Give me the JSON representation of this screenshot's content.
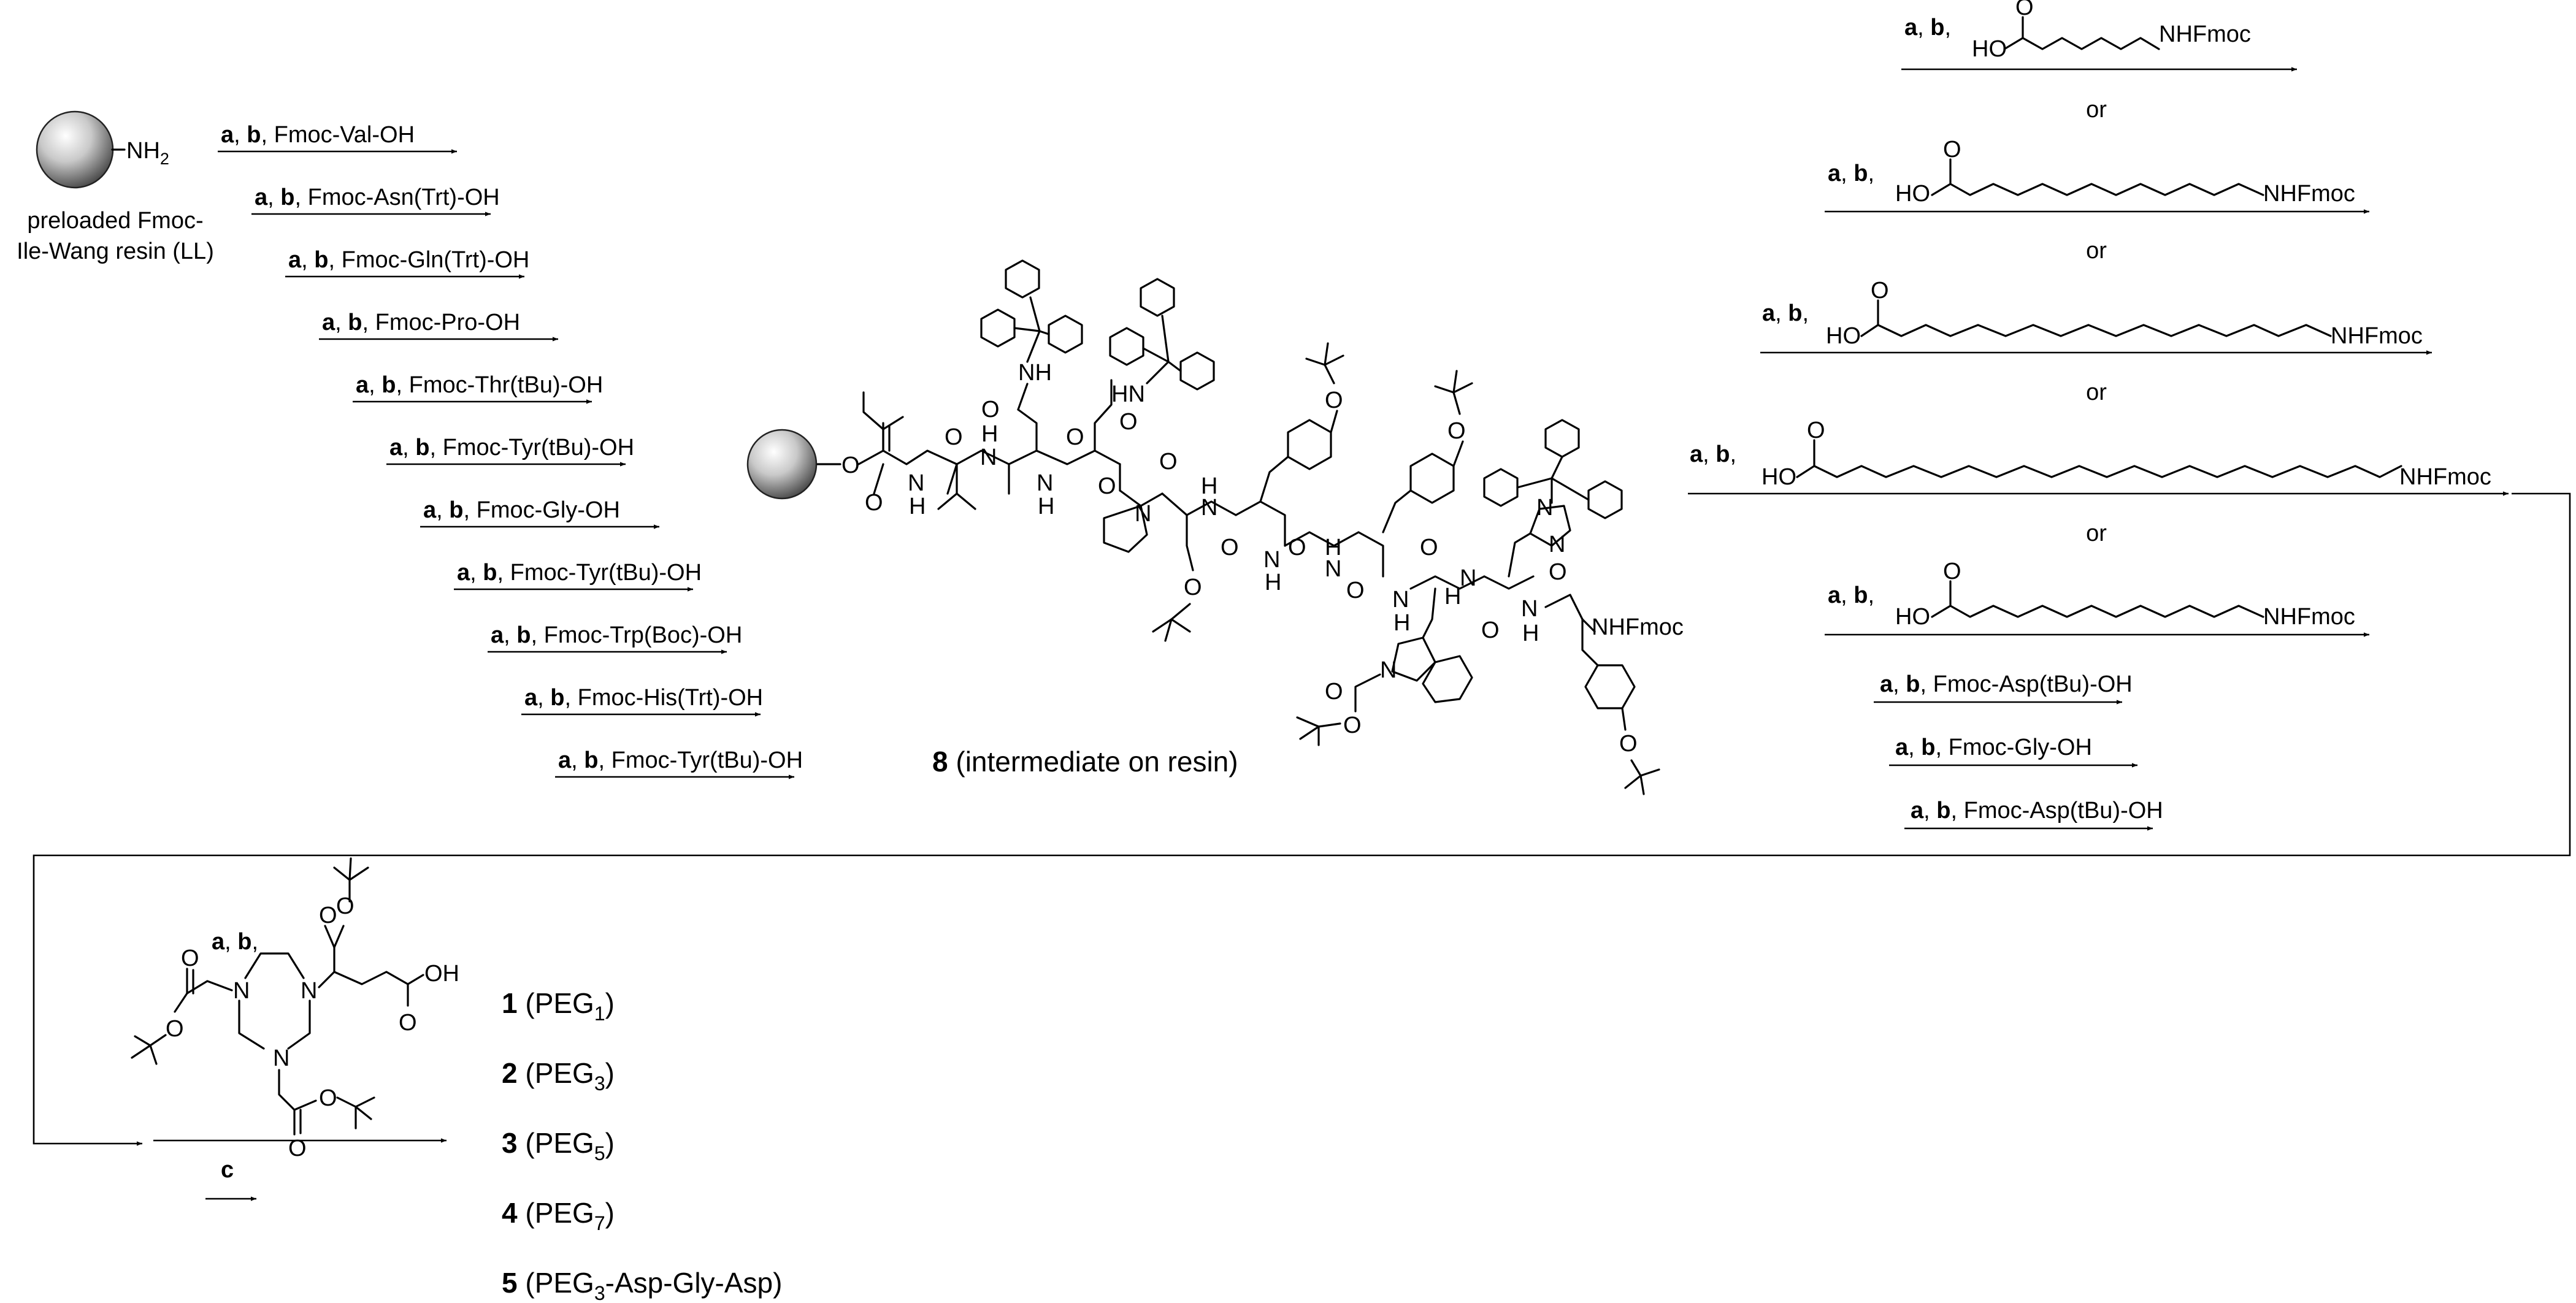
{
  "resin": {
    "nh2": "NH",
    "nh2_sub": "2",
    "label_line1": "preloaded Fmoc-",
    "label_line2": "Ile-Wang resin (LL)"
  },
  "coupling_prefix": {
    "a": "a",
    "b": "b"
  },
  "spps_steps": [
    "Fmoc-Val-OH",
    "Fmoc-Asn(Trt)-OH",
    "Fmoc-Gln(Trt)-OH",
    "Fmoc-Pro-OH",
    "Fmoc-Thr(tBu)-OH",
    "Fmoc-Tyr(tBu)-OH",
    "Fmoc-Gly-OH",
    "Fmoc-Tyr(tBu)-OH",
    "Fmoc-Trp(Boc)-OH",
    "Fmoc-His(Trt)-OH",
    "Fmoc-Tyr(tBu)-OH"
  ],
  "intermediate": {
    "number": "8",
    "label": "(intermediate on resin)",
    "atoms": {
      "O": "O",
      "N": "N",
      "H": "H",
      "NH": "NH",
      "HN": "HN",
      "NHFmoc": "NHFmoc"
    }
  },
  "peg_options": {
    "or": "or",
    "ho": "HO",
    "o": "O",
    "nhfmoc": "NHFmoc"
  },
  "post_steps": [
    "Fmoc-Asp(tBu)-OH",
    "Fmoc-Gly-OH",
    "Fmoc-Asp(tBu)-OH"
  ],
  "chelator": {
    "n": "N",
    "o": "O",
    "oh": "OH"
  },
  "final_reagent": "c",
  "products": [
    {
      "num": "1",
      "pre": "(PEG",
      "sub": "1",
      "post": ")"
    },
    {
      "num": "2",
      "pre": "(PEG",
      "sub": "3",
      "post": ")"
    },
    {
      "num": "3",
      "pre": "(PEG",
      "sub": "5",
      "post": ")"
    },
    {
      "num": "4",
      "pre": "(PEG",
      "sub": "7",
      "post": ")"
    },
    {
      "num": "5",
      "pre": "(PEG",
      "sub": "3",
      "post": "-Asp-Gly-Asp)"
    }
  ]
}
